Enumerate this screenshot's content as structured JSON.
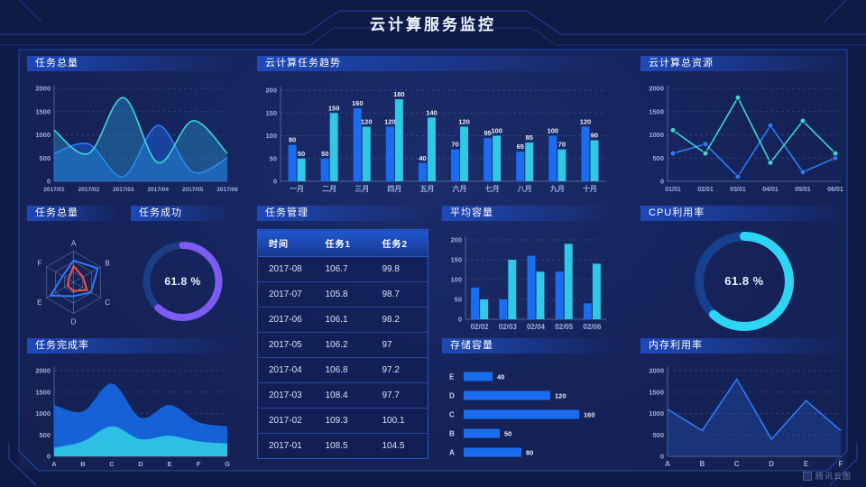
{
  "header": {
    "title": "云计算服务监控"
  },
  "footer": {
    "brand": "腾讯云图"
  },
  "palette": {
    "bar_blue": "#1b6df0",
    "bar_cyan": "#2fc8e6",
    "line_blue": "#2e7bf5",
    "line_teal": "#3bd6d8",
    "radar_red": "#f5533d",
    "donut_purple": "#7c5cf2",
    "donut_cyan": "#2ed5f2"
  },
  "chart_data": {
    "task_total": {
      "title": "任务总量",
      "type": "smooth_area",
      "x": [
        "2017/01",
        "2017/02",
        "2017/03",
        "2017/04",
        "2017/05",
        "2017/06"
      ],
      "ymax": 2000,
      "yticks": [
        0,
        500,
        1000,
        1500,
        2000
      ],
      "xfs": 6.5,
      "series": [
        {
          "name": "series-blue",
          "color": "#2e7bf5",
          "fill": "rgba(28,95,225,0.50)",
          "values": [
            600,
            800,
            100,
            1200,
            200,
            500
          ]
        },
        {
          "name": "series-cyan",
          "color": "#3bd6d8",
          "fill": "rgba(40,160,215,0.38)",
          "values": [
            1100,
            600,
            1800,
            400,
            1300,
            600
          ]
        }
      ]
    },
    "cloud_trend": {
      "title": "云计算任务趋势",
      "type": "grouped_bar",
      "show_values": true,
      "x": [
        "一月",
        "二月",
        "三月",
        "四月",
        "五月",
        "六月",
        "七月",
        "八月",
        "九月",
        "十月"
      ],
      "ymax": 200,
      "yticks": [
        0,
        50,
        100,
        150,
        200
      ],
      "series": [
        {
          "name": "series-blue",
          "color": "#1b6df0",
          "values": [
            80,
            50,
            160,
            120,
            40,
            70,
            95,
            65,
            100,
            120
          ]
        },
        {
          "name": "series-cyan",
          "color": "#2fc8e6",
          "values": [
            50,
            150,
            120,
            180,
            140,
            120,
            100,
            85,
            70,
            90
          ]
        }
      ]
    },
    "cloud_resource": {
      "title": "云计算总资源",
      "type": "marker_line",
      "x": [
        "01/01",
        "02/01",
        "03/01",
        "04/01",
        "05/01",
        "06/01"
      ],
      "ymax": 2000,
      "yticks": [
        0,
        500,
        1000,
        1500,
        2000
      ],
      "xfs": 7,
      "series": [
        {
          "name": "series-blue",
          "color": "#2e7bf5",
          "values": [
            600,
            800,
            100,
            1200,
            200,
            500
          ]
        },
        {
          "name": "series-teal",
          "color": "#3bd6ce",
          "values": [
            1100,
            600,
            1800,
            400,
            1300,
            600
          ]
        }
      ]
    },
    "task_radar": {
      "title": "任务总量",
      "type": "radar",
      "axes": [
        "A",
        "B",
        "C",
        "D",
        "E",
        "F"
      ],
      "max": 100,
      "series": [
        {
          "name": "series-blue",
          "color": "#2e7bf5",
          "values": [
            70,
            90,
            65,
            45,
            85,
            40
          ]
        },
        {
          "name": "series-red",
          "color": "#f5533d",
          "values": [
            52,
            35,
            50,
            28,
            22,
            18
          ]
        }
      ]
    },
    "task_success": {
      "title": "任务成功",
      "type": "donut",
      "value": 61.8,
      "label": "61.8 %",
      "color": "#7c5cf2",
      "track": "#1c3e86",
      "r": 40,
      "sw": 8,
      "fs": 12
    },
    "task_table": {
      "title": "任务管理",
      "type": "table",
      "headers": [
        "时间",
        "任务1",
        "任务2"
      ],
      "rows": [
        [
          "2017-08",
          "106.7",
          "99.8"
        ],
        [
          "2017-07",
          "105.8",
          "98.7"
        ],
        [
          "2017-06",
          "106.1",
          "98.2"
        ],
        [
          "2017-05",
          "106.2",
          "97"
        ],
        [
          "2017-04",
          "106.8",
          "97.2"
        ],
        [
          "2017-03",
          "108.4",
          "97.7"
        ],
        [
          "2017-02",
          "109.3",
          "100.1"
        ],
        [
          "2017-01",
          "108.5",
          "104.5"
        ]
      ]
    },
    "avg_capacity": {
      "title": "平均容量",
      "type": "grouped_bar",
      "show_values": false,
      "x": [
        "02/02",
        "02/03",
        "02/04",
        "02/05",
        "02/06"
      ],
      "ymax": 200,
      "yticks": [
        0,
        50,
        100,
        150,
        200
      ],
      "series": [
        {
          "name": "series-blue",
          "color": "#1b6df0",
          "values": [
            80,
            50,
            160,
            120,
            40
          ]
        },
        {
          "name": "series-cyan",
          "color": "#2fc8e6",
          "values": [
            50,
            150,
            120,
            190,
            140
          ]
        }
      ]
    },
    "cpu_usage": {
      "title": "CPU利用率",
      "type": "donut",
      "value": 61.8,
      "label": "61.8 %",
      "color": "#2ed5f2",
      "track": "#15418e",
      "r": 50,
      "sw": 10,
      "fs": 13
    },
    "task_completion": {
      "title": "任务完成率",
      "type": "smooth_overlap",
      "x": [
        "A",
        "B",
        "C",
        "D",
        "E",
        "F",
        "G"
      ],
      "ymax": 2000,
      "yticks": [
        0,
        500,
        1000,
        1500,
        2000
      ],
      "series": [
        {
          "name": "series-blue",
          "color": "#1668e3",
          "fill": "rgba(22,104,227,0.92)",
          "values": [
            1200,
            1050,
            1700,
            900,
            1200,
            800,
            700
          ]
        },
        {
          "name": "series-cyan",
          "color": "#2fc8e6",
          "fill": "rgba(47,200,230,0.92)",
          "values": [
            200,
            350,
            700,
            400,
            480,
            350,
            300
          ]
        }
      ]
    },
    "storage": {
      "title": "存储容量",
      "type": "hbar",
      "categories": [
        "E",
        "D",
        "C",
        "B",
        "A"
      ],
      "values": [
        40,
        120,
        160,
        50,
        80
      ],
      "max": 170,
      "color": "#1b6df0"
    },
    "memory": {
      "title": "内存利用率",
      "type": "line_area",
      "x": [
        "A",
        "B",
        "C",
        "D",
        "E",
        "F"
      ],
      "ymax": 2000,
      "yticks": [
        0,
        500,
        1000,
        1500,
        2000
      ],
      "series": [
        {
          "name": "series-blue",
          "color": "#2e7bf5",
          "fill": "rgba(40,100,220,0.28)",
          "values": [
            1100,
            600,
            1800,
            400,
            1300,
            600
          ]
        }
      ]
    }
  }
}
